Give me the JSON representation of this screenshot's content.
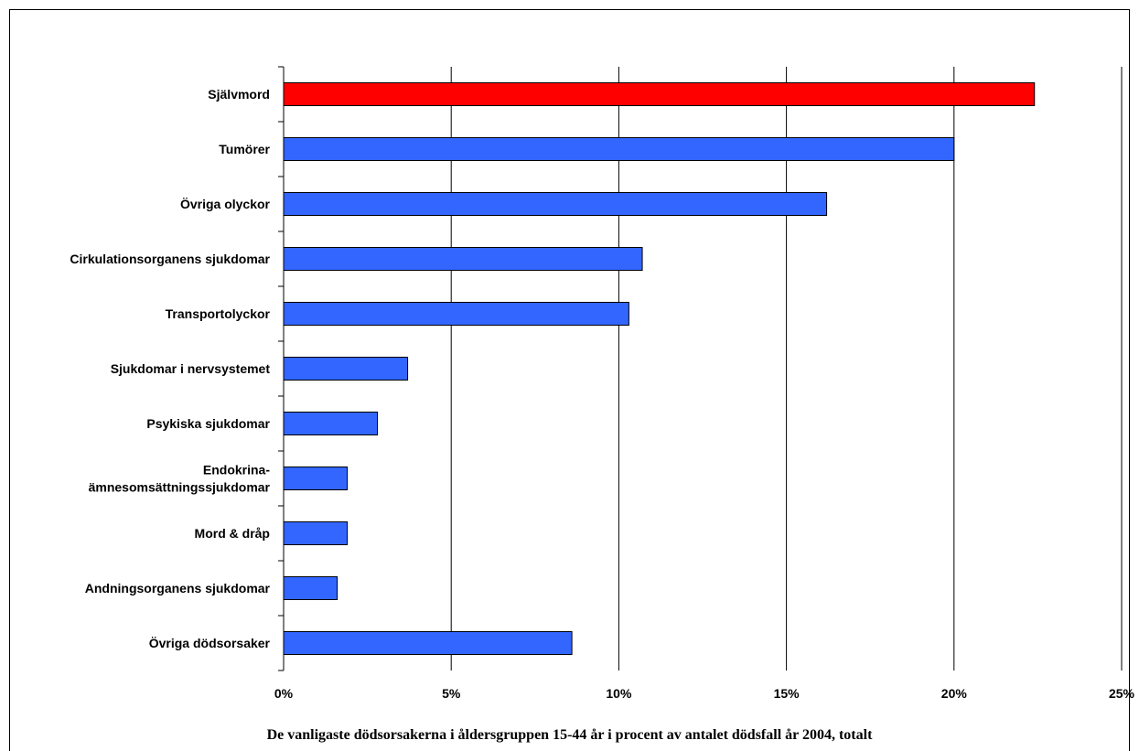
{
  "chart_data": {
    "type": "bar",
    "orientation": "horizontal",
    "categories": [
      "Självmord",
      "Tumörer",
      "Övriga olyckor",
      "Cirkulationsorganens sjukdomar",
      "Transportolyckor",
      "Sjukdomar i nervsystemet",
      "Psykiska sjukdomar",
      "Endokrina-ämnesomsättningssjukdomar",
      "Mord & dråp",
      "Andningsorganens sjukdomar",
      "Övriga dödsorsaker"
    ],
    "category_label_lines": [
      [
        "Självmord"
      ],
      [
        "Tumörer"
      ],
      [
        "Övriga olyckor"
      ],
      [
        "Cirkulationsorganens sjukdomar"
      ],
      [
        "Transportolyckor"
      ],
      [
        "Sjukdomar i nervsystemet"
      ],
      [
        "Psykiska sjukdomar"
      ],
      [
        "Endokrina-",
        "ämnesomsättningssjukdomar"
      ],
      [
        "Mord & dråp"
      ],
      [
        "Andningsorganens sjukdomar"
      ],
      [
        "Övriga dödsorsaker"
      ]
    ],
    "values": [
      22.4,
      20.0,
      16.2,
      10.7,
      10.3,
      3.7,
      2.8,
      1.9,
      1.9,
      1.6,
      8.6
    ],
    "bar_colors": [
      "#ff0000",
      "#3366ff",
      "#3366ff",
      "#3366ff",
      "#3366ff",
      "#3366ff",
      "#3366ff",
      "#3366ff",
      "#3366ff",
      "#3366ff",
      "#3366ff"
    ],
    "xlim": [
      0,
      25
    ],
    "x_ticks": [
      0,
      5,
      10,
      15,
      20,
      25
    ],
    "x_tick_labels": [
      "0%",
      "5%",
      "10%",
      "15%",
      "20%",
      "25%"
    ],
    "grid": "vertical",
    "xlabel": "",
    "ylabel": "",
    "caption": "De vanligaste dödsorsakerna i åldersgruppen 15-44 år i procent av antalet dödsfall år 2004, totalt"
  }
}
